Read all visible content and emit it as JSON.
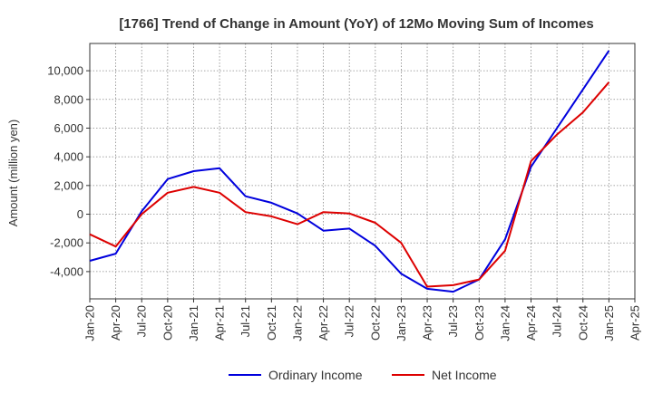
{
  "chart_data": {
    "type": "line",
    "title": "[1766]  Trend of Change in Amount (YoY) of 12Mo Moving Sum of Incomes",
    "ylabel": "Amount (million yen)",
    "xlabel": "",
    "x": [
      "Jan-20",
      "Apr-20",
      "Jul-20",
      "Oct-20",
      "Jan-21",
      "Apr-21",
      "Jul-21",
      "Oct-21",
      "Jan-22",
      "Apr-22",
      "Jul-22",
      "Oct-22",
      "Jan-23",
      "Apr-23",
      "Jul-23",
      "Oct-23",
      "Jan-24",
      "Apr-24",
      "Jul-24",
      "Oct-24",
      "Jan-25",
      "Apr-25"
    ],
    "ylim": [
      -5900,
      11900
    ],
    "yticks": [
      -4000,
      -2000,
      0,
      2000,
      4000,
      6000,
      8000,
      10000
    ],
    "ytick_labels": [
      "-4,000",
      "-2,000",
      "0",
      "2,000",
      "4,000",
      "6,000",
      "8,000",
      "10,000"
    ],
    "grid": true,
    "legend_position": "bottom",
    "series": [
      {
        "name": "Ordinary Income",
        "color": "#0000dd",
        "values": [
          -3250,
          -2750,
          200,
          2450,
          3000,
          3200,
          1250,
          800,
          50,
          -1150,
          -1000,
          -2200,
          -4150,
          -5200,
          -5400,
          -4550,
          -1750,
          3300,
          6000,
          8700,
          11400,
          null
        ]
      },
      {
        "name": "Net Income",
        "color": "#dd0000",
        "values": [
          -1400,
          -2250,
          0,
          1500,
          1900,
          1500,
          150,
          -150,
          -700,
          150,
          50,
          -600,
          -2000,
          -5050,
          -4950,
          -4550,
          -2550,
          3700,
          5550,
          7100,
          9200,
          null
        ]
      }
    ]
  }
}
